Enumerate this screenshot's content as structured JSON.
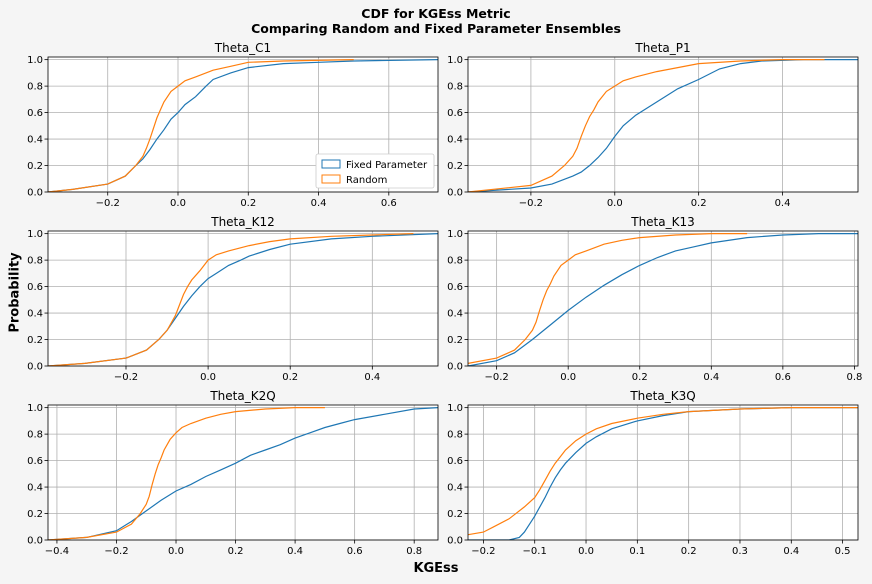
{
  "figure": {
    "title_line1": "CDF for KGEss Metric",
    "title_line2": "Comparing Random and Fixed Parameter Ensembles",
    "ylabel": "Probability",
    "xlabel": "KGEss"
  },
  "colors": {
    "fixed": "#1f77b4",
    "random": "#ff7f0e",
    "grid": "#b0b0b0"
  },
  "chart_data": [
    {
      "type": "line",
      "title": "Theta_C1",
      "xlim": [
        -0.37,
        0.74
      ],
      "ylim": [
        0,
        1.02
      ],
      "xticks": [
        -0.2,
        0.0,
        0.2,
        0.4,
        0.6
      ],
      "yticks": [
        0.0,
        0.2,
        0.4,
        0.6,
        0.8,
        1.0
      ],
      "legend": "lower-right",
      "grid": true,
      "series": [
        {
          "name": "Fixed Parameter",
          "x": [
            -0.37,
            -0.3,
            -0.2,
            -0.15,
            -0.12,
            -0.1,
            -0.08,
            -0.06,
            -0.04,
            -0.02,
            0.0,
            0.02,
            0.05,
            0.08,
            0.1,
            0.15,
            0.2,
            0.3,
            0.4,
            0.5,
            0.74
          ],
          "y": [
            0.0,
            0.02,
            0.06,
            0.12,
            0.2,
            0.25,
            0.32,
            0.4,
            0.47,
            0.55,
            0.6,
            0.66,
            0.72,
            0.8,
            0.85,
            0.9,
            0.94,
            0.97,
            0.98,
            0.99,
            1.0
          ]
        },
        {
          "name": "Random",
          "x": [
            -0.37,
            -0.3,
            -0.2,
            -0.15,
            -0.12,
            -0.1,
            -0.09,
            -0.08,
            -0.07,
            -0.06,
            -0.05,
            -0.04,
            -0.02,
            0.0,
            0.02,
            0.05,
            0.1,
            0.15,
            0.2,
            0.3,
            0.5
          ],
          "y": [
            0.0,
            0.02,
            0.06,
            0.12,
            0.2,
            0.27,
            0.33,
            0.4,
            0.48,
            0.56,
            0.62,
            0.68,
            0.76,
            0.8,
            0.84,
            0.87,
            0.92,
            0.95,
            0.98,
            0.99,
            1.0
          ]
        }
      ]
    },
    {
      "type": "line",
      "title": "Theta_P1",
      "xlim": [
        -0.35,
        0.58
      ],
      "ylim": [
        0,
        1.02
      ],
      "xticks": [
        -0.2,
        0.0,
        0.2,
        0.4
      ],
      "yticks": [
        0.0,
        0.2,
        0.4,
        0.6,
        0.8,
        1.0
      ],
      "grid": true,
      "series": [
        {
          "name": "Fixed Parameter",
          "x": [
            -0.35,
            -0.2,
            -0.15,
            -0.1,
            -0.08,
            -0.06,
            -0.04,
            -0.02,
            0.0,
            0.02,
            0.05,
            0.1,
            0.15,
            0.2,
            0.25,
            0.3,
            0.35,
            0.45,
            0.58
          ],
          "y": [
            0.0,
            0.03,
            0.06,
            0.12,
            0.15,
            0.2,
            0.26,
            0.33,
            0.42,
            0.5,
            0.58,
            0.68,
            0.78,
            0.85,
            0.93,
            0.97,
            0.99,
            1.0,
            1.0
          ]
        },
        {
          "name": "Random",
          "x": [
            -0.35,
            -0.2,
            -0.15,
            -0.12,
            -0.1,
            -0.09,
            -0.08,
            -0.07,
            -0.06,
            -0.05,
            -0.04,
            -0.02,
            0.0,
            0.02,
            0.05,
            0.1,
            0.15,
            0.2,
            0.3,
            0.4,
            0.5
          ],
          "y": [
            0.0,
            0.05,
            0.12,
            0.2,
            0.27,
            0.33,
            0.42,
            0.5,
            0.57,
            0.62,
            0.68,
            0.76,
            0.8,
            0.84,
            0.87,
            0.91,
            0.94,
            0.97,
            0.99,
            1.0,
            1.0
          ]
        }
      ]
    },
    {
      "type": "line",
      "title": "Theta_K12",
      "xlim": [
        -0.39,
        0.56
      ],
      "ylim": [
        0,
        1.02
      ],
      "xticks": [
        -0.2,
        0.0,
        0.2,
        0.4
      ],
      "yticks": [
        0.0,
        0.2,
        0.4,
        0.6,
        0.8,
        1.0
      ],
      "grid": true,
      "series": [
        {
          "name": "Fixed Parameter",
          "x": [
            -0.39,
            -0.3,
            -0.2,
            -0.15,
            -0.12,
            -0.1,
            -0.08,
            -0.06,
            -0.04,
            -0.02,
            0.0,
            0.02,
            0.05,
            0.08,
            0.1,
            0.15,
            0.2,
            0.3,
            0.4,
            0.56
          ],
          "y": [
            0.0,
            0.02,
            0.06,
            0.12,
            0.2,
            0.27,
            0.36,
            0.45,
            0.53,
            0.6,
            0.66,
            0.7,
            0.76,
            0.8,
            0.83,
            0.88,
            0.92,
            0.96,
            0.98,
            1.0
          ]
        },
        {
          "name": "Random",
          "x": [
            -0.39,
            -0.3,
            -0.2,
            -0.15,
            -0.12,
            -0.1,
            -0.08,
            -0.07,
            -0.06,
            -0.05,
            -0.04,
            -0.02,
            0.0,
            0.02,
            0.05,
            0.1,
            0.15,
            0.2,
            0.3,
            0.4,
            0.5
          ],
          "y": [
            0.0,
            0.02,
            0.06,
            0.12,
            0.2,
            0.27,
            0.38,
            0.46,
            0.54,
            0.6,
            0.65,
            0.72,
            0.8,
            0.84,
            0.87,
            0.91,
            0.94,
            0.96,
            0.98,
            0.99,
            1.0
          ]
        }
      ]
    },
    {
      "type": "line",
      "title": "Theta_K13",
      "xlim": [
        -0.28,
        0.81
      ],
      "ylim": [
        0,
        1.02
      ],
      "xticks": [
        -0.2,
        0.0,
        0.2,
        0.4,
        0.6,
        0.8
      ],
      "yticks": [
        0.0,
        0.2,
        0.4,
        0.6,
        0.8,
        1.0
      ],
      "grid": true,
      "series": [
        {
          "name": "Fixed Parameter",
          "x": [
            -0.28,
            -0.2,
            -0.15,
            -0.1,
            -0.05,
            0.0,
            0.05,
            0.1,
            0.15,
            0.2,
            0.25,
            0.3,
            0.35,
            0.4,
            0.5,
            0.6,
            0.7,
            0.81
          ],
          "y": [
            0.0,
            0.04,
            0.1,
            0.2,
            0.31,
            0.42,
            0.52,
            0.61,
            0.69,
            0.76,
            0.82,
            0.87,
            0.9,
            0.93,
            0.97,
            0.99,
            1.0,
            1.0
          ]
        },
        {
          "name": "Random",
          "x": [
            -0.28,
            -0.2,
            -0.15,
            -0.12,
            -0.1,
            -0.09,
            -0.08,
            -0.07,
            -0.06,
            -0.05,
            -0.04,
            -0.02,
            0.0,
            0.02,
            0.05,
            0.1,
            0.15,
            0.2,
            0.3,
            0.4,
            0.5
          ],
          "y": [
            0.02,
            0.06,
            0.12,
            0.2,
            0.27,
            0.33,
            0.42,
            0.5,
            0.57,
            0.62,
            0.68,
            0.76,
            0.8,
            0.84,
            0.87,
            0.92,
            0.95,
            0.97,
            0.99,
            1.0,
            1.0
          ]
        }
      ]
    },
    {
      "type": "line",
      "title": "Theta_K2Q",
      "xlim": [
        -0.43,
        0.88
      ],
      "ylim": [
        0,
        1.02
      ],
      "xticks": [
        -0.4,
        -0.2,
        0.0,
        0.2,
        0.4,
        0.6,
        0.8
      ],
      "yticks": [
        0.0,
        0.2,
        0.4,
        0.6,
        0.8,
        1.0
      ],
      "grid": true,
      "series": [
        {
          "name": "Fixed Parameter",
          "x": [
            -0.43,
            -0.3,
            -0.2,
            -0.15,
            -0.1,
            -0.05,
            0.0,
            0.05,
            0.1,
            0.15,
            0.2,
            0.25,
            0.3,
            0.35,
            0.4,
            0.45,
            0.5,
            0.55,
            0.6,
            0.7,
            0.8,
            0.88
          ],
          "y": [
            0.0,
            0.02,
            0.07,
            0.14,
            0.22,
            0.3,
            0.37,
            0.42,
            0.48,
            0.53,
            0.58,
            0.64,
            0.68,
            0.72,
            0.77,
            0.81,
            0.85,
            0.88,
            0.91,
            0.95,
            0.99,
            1.0
          ]
        },
        {
          "name": "Random",
          "x": [
            -0.43,
            -0.3,
            -0.2,
            -0.15,
            -0.12,
            -0.1,
            -0.09,
            -0.08,
            -0.07,
            -0.06,
            -0.05,
            -0.04,
            -0.02,
            0.0,
            0.02,
            0.05,
            0.1,
            0.15,
            0.2,
            0.3,
            0.4,
            0.5
          ],
          "y": [
            0.0,
            0.02,
            0.06,
            0.12,
            0.2,
            0.27,
            0.33,
            0.42,
            0.5,
            0.57,
            0.62,
            0.68,
            0.76,
            0.81,
            0.85,
            0.88,
            0.92,
            0.95,
            0.97,
            0.99,
            1.0,
            1.0
          ]
        }
      ]
    },
    {
      "type": "line",
      "title": "Theta_K3Q",
      "xlim": [
        -0.23,
        0.53
      ],
      "ylim": [
        0,
        1.02
      ],
      "xticks": [
        -0.2,
        -0.1,
        0.0,
        0.1,
        0.2,
        0.3,
        0.4,
        0.5
      ],
      "yticks": [
        0.0,
        0.2,
        0.4,
        0.6,
        0.8,
        1.0
      ],
      "grid": true,
      "series": [
        {
          "name": "Fixed Parameter",
          "x": [
            -0.23,
            -0.15,
            -0.13,
            -0.12,
            -0.11,
            -0.1,
            -0.09,
            -0.08,
            -0.07,
            -0.06,
            -0.05,
            -0.04,
            -0.02,
            0.0,
            0.02,
            0.05,
            0.1,
            0.15,
            0.2,
            0.3,
            0.4,
            0.53
          ],
          "y": [
            0.0,
            0.0,
            0.02,
            0.06,
            0.12,
            0.18,
            0.25,
            0.32,
            0.4,
            0.47,
            0.53,
            0.58,
            0.66,
            0.73,
            0.78,
            0.84,
            0.9,
            0.94,
            0.97,
            0.99,
            1.0,
            1.0
          ]
        },
        {
          "name": "Random",
          "x": [
            -0.23,
            -0.2,
            -0.18,
            -0.15,
            -0.12,
            -0.1,
            -0.09,
            -0.08,
            -0.07,
            -0.06,
            -0.05,
            -0.04,
            -0.02,
            0.0,
            0.02,
            0.05,
            0.1,
            0.15,
            0.2,
            0.3,
            0.4,
            0.53
          ],
          "y": [
            0.04,
            0.06,
            0.1,
            0.16,
            0.25,
            0.32,
            0.38,
            0.45,
            0.52,
            0.58,
            0.63,
            0.68,
            0.75,
            0.8,
            0.84,
            0.88,
            0.92,
            0.95,
            0.97,
            0.99,
            1.0,
            1.0
          ]
        }
      ]
    }
  ]
}
